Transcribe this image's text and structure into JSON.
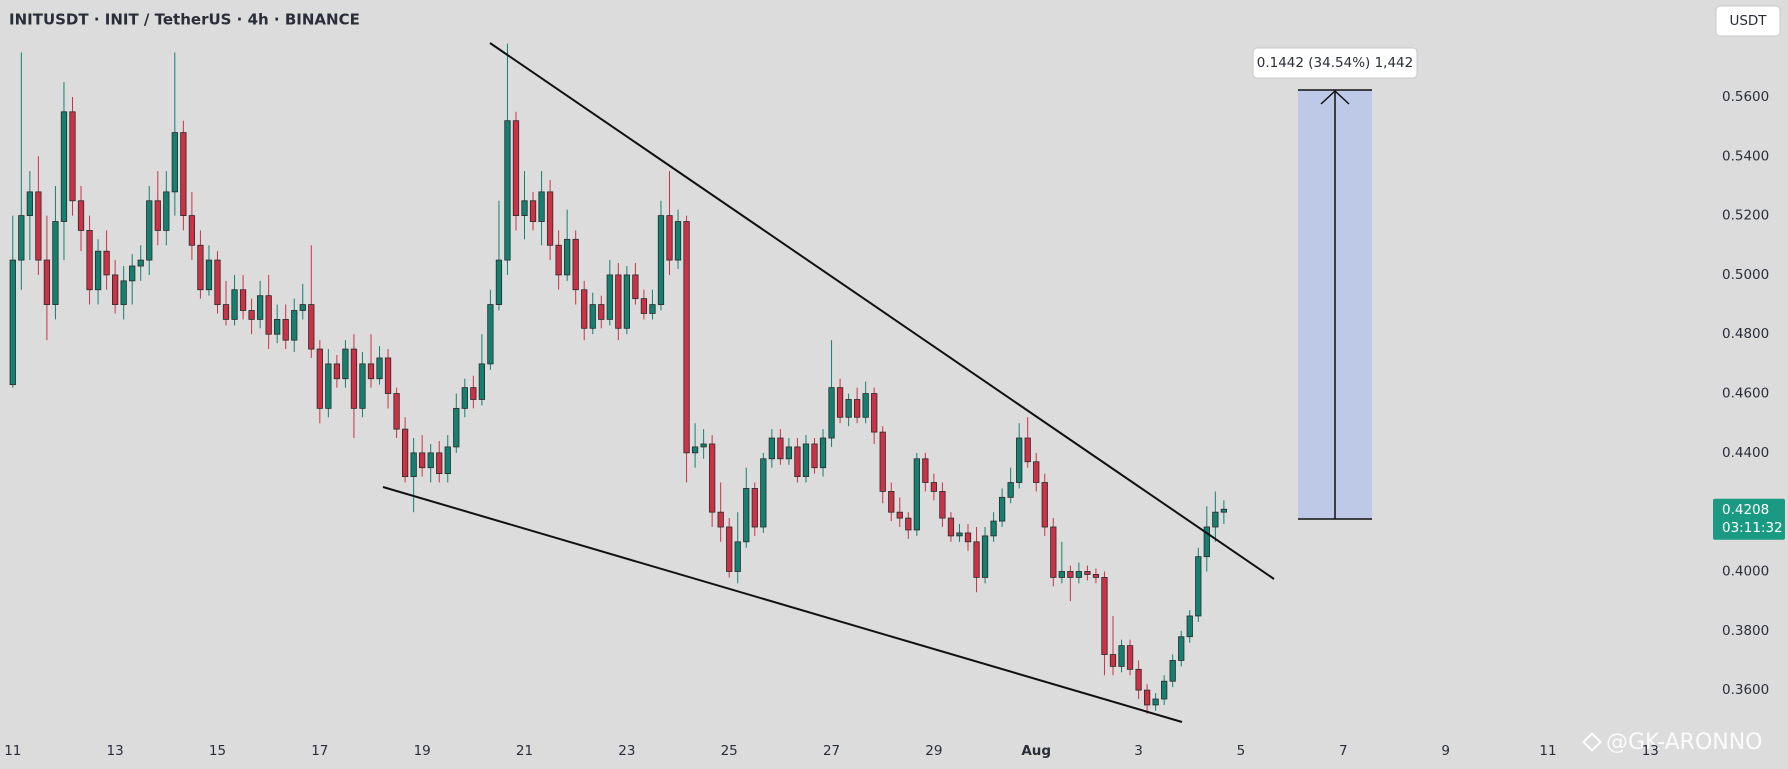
{
  "chart_data": {
    "type": "candlestick",
    "title": "INITUSDT · INIT / TetherUS · 4h · BINANCE",
    "currency": "USDT",
    "annotation": "0.1442 (34.54%) 1,442",
    "last_price": 0.4208,
    "countdown": "03:11:32",
    "watermark": "@GK-ARONNO",
    "up_color": "#14806f",
    "down_color": "#cc3146",
    "grid": false,
    "xlim": [
      -1.5,
      199
    ],
    "xticks": [
      {
        "value": 0,
        "label": "11"
      },
      {
        "value": 12,
        "label": "13"
      },
      {
        "value": 24,
        "label": "15"
      },
      {
        "value": 36,
        "label": "17"
      },
      {
        "value": 48,
        "label": "19"
      },
      {
        "value": 60,
        "label": "21"
      },
      {
        "value": 72,
        "label": "23"
      },
      {
        "value": 84,
        "label": "25"
      },
      {
        "value": 96,
        "label": "27"
      },
      {
        "value": 108,
        "label": "29"
      },
      {
        "value": 120,
        "label": "Aug"
      },
      {
        "value": 132,
        "label": "3"
      },
      {
        "value": 144,
        "label": "5"
      },
      {
        "value": 156,
        "label": "7"
      },
      {
        "value": 168,
        "label": "9"
      },
      {
        "value": 180,
        "label": "11"
      },
      {
        "value": 192,
        "label": "13"
      }
    ],
    "ylim": [
      0.3334,
      0.5927
    ],
    "yticks": [
      {
        "value": 0.36,
        "label": "0.3600"
      },
      {
        "value": 0.38,
        "label": "0.3800"
      },
      {
        "value": 0.4,
        "label": "0.4000"
      },
      {
        "value": 0.42,
        "label": "0.4200"
      },
      {
        "value": 0.44,
        "label": "0.4400"
      },
      {
        "value": 0.46,
        "label": "0.4600"
      },
      {
        "value": 0.48,
        "label": "0.4800"
      },
      {
        "value": 0.5,
        "label": "0.5000"
      },
      {
        "value": 0.52,
        "label": "0.5200"
      },
      {
        "value": 0.54,
        "label": "0.5400"
      },
      {
        "value": 0.56,
        "label": "0.5600"
      }
    ],
    "open": [
      0.463,
      0.505,
      0.52,
      0.528,
      0.505,
      0.49,
      0.518,
      0.555,
      0.525,
      0.515,
      0.495,
      0.508,
      0.5,
      0.49,
      0.498,
      0.503,
      0.505,
      0.525,
      0.515,
      0.528,
      0.548,
      0.52,
      0.51,
      0.495,
      0.505,
      0.49,
      0.485,
      0.495,
      0.488,
      0.485,
      0.493,
      0.48,
      0.485,
      0.478,
      0.488,
      0.49,
      0.475,
      0.455,
      0.47,
      0.465,
      0.475,
      0.455,
      0.47,
      0.465,
      0.472,
      0.46,
      0.448,
      0.432,
      0.44,
      0.435,
      0.44,
      0.433,
      0.442,
      0.455,
      0.462,
      0.458,
      0.47,
      0.49,
      0.505,
      0.552,
      0.52,
      0.525,
      0.518,
      0.528,
      0.51,
      0.5,
      0.512,
      0.495,
      0.482,
      0.49,
      0.485,
      0.5,
      0.482,
      0.5,
      0.492,
      0.487,
      0.49,
      0.52,
      0.505,
      0.518,
      0.44,
      0.442,
      0.443,
      0.42,
      0.415,
      0.4,
      0.41,
      0.428,
      0.415,
      0.438,
      0.445,
      0.438,
      0.442,
      0.432,
      0.443,
      0.435,
      0.445,
      0.462,
      0.452,
      0.458,
      0.452,
      0.46,
      0.447,
      0.427,
      0.42,
      0.418,
      0.414,
      0.438,
      0.43,
      0.427,
      0.418,
      0.412,
      0.413,
      0.41,
      0.398,
      0.412,
      0.417,
      0.425,
      0.43,
      0.445,
      0.437,
      0.43,
      0.415,
      0.398,
      0.4,
      0.398,
      0.4,
      0.399,
      0.398,
      0.372,
      0.368,
      0.375,
      0.367,
      0.36,
      0.355,
      0.357,
      0.363,
      0.37,
      0.378,
      0.385,
      0.405,
      0.415,
      0.42
    ],
    "high": [
      0.52,
      0.575,
      0.535,
      0.54,
      0.52,
      0.53,
      0.565,
      0.56,
      0.53,
      0.52,
      0.512,
      0.515,
      0.505,
      0.503,
      0.507,
      0.51,
      0.53,
      0.535,
      0.535,
      0.575,
      0.552,
      0.528,
      0.515,
      0.51,
      0.508,
      0.498,
      0.5,
      0.5,
      0.492,
      0.498,
      0.5,
      0.49,
      0.49,
      0.492,
      0.497,
      0.51,
      0.478,
      0.475,
      0.473,
      0.478,
      0.48,
      0.474,
      0.48,
      0.476,
      0.475,
      0.462,
      0.452,
      0.445,
      0.446,
      0.443,
      0.444,
      0.446,
      0.46,
      0.465,
      0.466,
      0.48,
      0.495,
      0.525,
      0.578,
      0.555,
      0.535,
      0.528,
      0.535,
      0.532,
      0.515,
      0.522,
      0.515,
      0.498,
      0.494,
      0.493,
      0.505,
      0.504,
      0.503,
      0.504,
      0.495,
      0.495,
      0.525,
      0.535,
      0.522,
      0.52,
      0.45,
      0.448,
      0.446,
      0.43,
      0.418,
      0.42,
      0.435,
      0.43,
      0.44,
      0.448,
      0.448,
      0.445,
      0.445,
      0.446,
      0.445,
      0.448,
      0.478,
      0.465,
      0.46,
      0.462,
      0.464,
      0.462,
      0.449,
      0.43,
      0.425,
      0.42,
      0.44,
      0.44,
      0.433,
      0.43,
      0.42,
      0.416,
      0.416,
      0.415,
      0.415,
      0.42,
      0.428,
      0.435,
      0.45,
      0.452,
      0.44,
      0.433,
      0.418,
      0.41,
      0.402,
      0.403,
      0.402,
      0.401,
      0.4,
      0.385,
      0.377,
      0.377,
      0.37,
      0.362,
      0.359,
      0.365,
      0.372,
      0.38,
      0.387,
      0.408,
      0.422,
      0.427,
      0.424
    ],
    "low": [
      0.462,
      0.495,
      0.505,
      0.5,
      0.478,
      0.485,
      0.505,
      0.52,
      0.508,
      0.49,
      0.49,
      0.495,
      0.487,
      0.485,
      0.49,
      0.498,
      0.5,
      0.51,
      0.51,
      0.52,
      0.515,
      0.505,
      0.492,
      0.493,
      0.487,
      0.483,
      0.483,
      0.485,
      0.48,
      0.482,
      0.475,
      0.477,
      0.475,
      0.474,
      0.485,
      0.472,
      0.45,
      0.452,
      0.462,
      0.462,
      0.445,
      0.452,
      0.462,
      0.463,
      0.455,
      0.445,
      0.43,
      0.42,
      0.432,
      0.43,
      0.43,
      0.43,
      0.44,
      0.452,
      0.455,
      0.456,
      0.468,
      0.488,
      0.5,
      0.515,
      0.512,
      0.515,
      0.51,
      0.505,
      0.495,
      0.498,
      0.49,
      0.478,
      0.48,
      0.482,
      0.483,
      0.478,
      0.48,
      0.49,
      0.485,
      0.485,
      0.488,
      0.5,
      0.502,
      0.43,
      0.435,
      0.438,
      0.415,
      0.41,
      0.398,
      0.396,
      0.408,
      0.412,
      0.413,
      0.435,
      0.436,
      0.436,
      0.43,
      0.43,
      0.433,
      0.432,
      0.442,
      0.45,
      0.449,
      0.45,
      0.45,
      0.443,
      0.423,
      0.417,
      0.415,
      0.411,
      0.412,
      0.427,
      0.424,
      0.415,
      0.41,
      0.41,
      0.407,
      0.393,
      0.396,
      0.41,
      0.415,
      0.423,
      0.428,
      0.435,
      0.427,
      0.412,
      0.395,
      0.396,
      0.39,
      0.396,
      0.397,
      0.396,
      0.365,
      0.365,
      0.366,
      0.365,
      0.357,
      0.352,
      0.353,
      0.355,
      0.361,
      0.368,
      0.376,
      0.383,
      0.4,
      0.41,
      0.416
    ],
    "close": [
      0.505,
      0.52,
      0.528,
      0.505,
      0.49,
      0.518,
      0.555,
      0.525,
      0.515,
      0.495,
      0.508,
      0.5,
      0.49,
      0.498,
      0.503,
      0.505,
      0.525,
      0.515,
      0.528,
      0.548,
      0.52,
      0.51,
      0.495,
      0.505,
      0.49,
      0.485,
      0.495,
      0.488,
      0.485,
      0.493,
      0.48,
      0.485,
      0.478,
      0.488,
      0.49,
      0.475,
      0.455,
      0.47,
      0.465,
      0.475,
      0.455,
      0.47,
      0.465,
      0.472,
      0.46,
      0.448,
      0.432,
      0.44,
      0.435,
      0.44,
      0.433,
      0.442,
      0.455,
      0.462,
      0.458,
      0.47,
      0.49,
      0.505,
      0.552,
      0.52,
      0.525,
      0.518,
      0.528,
      0.51,
      0.5,
      0.512,
      0.495,
      0.482,
      0.49,
      0.485,
      0.5,
      0.482,
      0.5,
      0.492,
      0.487,
      0.49,
      0.52,
      0.505,
      0.518,
      0.44,
      0.442,
      0.443,
      0.42,
      0.415,
      0.4,
      0.41,
      0.428,
      0.415,
      0.438,
      0.445,
      0.438,
      0.442,
      0.432,
      0.443,
      0.435,
      0.445,
      0.462,
      0.452,
      0.458,
      0.452,
      0.46,
      0.447,
      0.427,
      0.42,
      0.418,
      0.414,
      0.438,
      0.43,
      0.427,
      0.418,
      0.412,
      0.413,
      0.41,
      0.398,
      0.412,
      0.417,
      0.425,
      0.43,
      0.445,
      0.437,
      0.43,
      0.415,
      0.398,
      0.4,
      0.398,
      0.4,
      0.399,
      0.398,
      0.372,
      0.368,
      0.375,
      0.367,
      0.36,
      0.355,
      0.357,
      0.363,
      0.37,
      0.378,
      0.385,
      0.405,
      0.415,
      0.42,
      0.421
    ]
  }
}
